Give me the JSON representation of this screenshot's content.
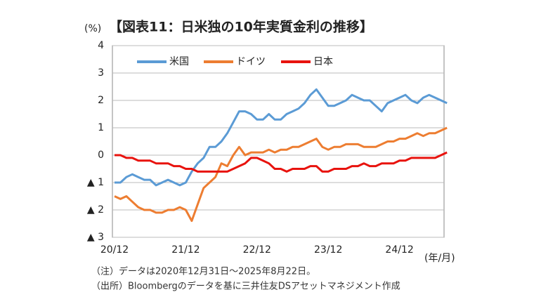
{
  "chart_data": {
    "type": "line",
    "title": "【図表11：日米独の10年実質金利の推移】",
    "y_unit": "(%)",
    "x_unit": "(年/月)",
    "notes": [
      "（注）データは2020年12月31日～2025年8月22日。",
      "（出所）Bloombergのデータを基に三井住友DSアセットマネジメント作成"
    ],
    "categories": [
      "20/12",
      null,
      null,
      null,
      null,
      null,
      null,
      null,
      null,
      null,
      null,
      null,
      "21/12",
      null,
      null,
      null,
      null,
      null,
      null,
      null,
      null,
      null,
      null,
      null,
      "22/12",
      null,
      null,
      null,
      null,
      null,
      null,
      null,
      null,
      null,
      null,
      null,
      "23/12",
      null,
      null,
      null,
      null,
      null,
      null,
      null,
      null,
      null,
      null,
      null,
      "24/12",
      null,
      null,
      null,
      null,
      null,
      null,
      null,
      null
    ],
    "series": [
      {
        "name": "米国",
        "color": "#5b9bd5",
        "values": [
          -1.0,
          -1.0,
          -0.8,
          -0.7,
          -0.8,
          -0.9,
          -0.9,
          -1.1,
          -1.0,
          -0.9,
          -1.0,
          -1.1,
          -1.0,
          -0.6,
          -0.3,
          -0.1,
          0.3,
          0.3,
          0.5,
          0.8,
          1.2,
          1.6,
          1.6,
          1.5,
          1.3,
          1.3,
          1.5,
          1.3,
          1.3,
          1.5,
          1.6,
          1.7,
          1.9,
          2.2,
          2.4,
          2.1,
          1.8,
          1.8,
          1.9,
          2.0,
          2.2,
          2.1,
          2.0,
          2.0,
          1.8,
          1.6,
          1.9,
          2.0,
          2.1,
          2.2,
          2.0,
          1.9,
          2.1,
          2.2,
          2.1,
          2.0,
          1.9
        ]
      },
      {
        "name": "ドイツ",
        "color": "#ed7d31",
        "values": [
          -1.5,
          -1.6,
          -1.5,
          -1.7,
          -1.9,
          -2.0,
          -2.0,
          -2.1,
          -2.1,
          -2.0,
          -2.0,
          -1.9,
          -2.0,
          -2.4,
          -1.8,
          -1.2,
          -1.0,
          -0.8,
          -0.3,
          -0.4,
          0.0,
          0.3,
          0.0,
          0.1,
          0.1,
          0.1,
          0.2,
          0.1,
          0.2,
          0.2,
          0.3,
          0.3,
          0.4,
          0.5,
          0.6,
          0.3,
          0.2,
          0.3,
          0.3,
          0.4,
          0.4,
          0.4,
          0.3,
          0.3,
          0.3,
          0.4,
          0.5,
          0.5,
          0.6,
          0.6,
          0.7,
          0.8,
          0.7,
          0.8,
          0.8,
          0.9,
          1.0
        ]
      },
      {
        "name": "日本",
        "color": "#e8130e",
        "values": [
          0.0,
          0.0,
          -0.1,
          -0.1,
          -0.2,
          -0.2,
          -0.2,
          -0.3,
          -0.3,
          -0.3,
          -0.4,
          -0.4,
          -0.5,
          -0.5,
          -0.6,
          -0.6,
          -0.6,
          -0.6,
          -0.6,
          -0.6,
          -0.5,
          -0.4,
          -0.3,
          -0.1,
          -0.1,
          -0.2,
          -0.3,
          -0.5,
          -0.5,
          -0.6,
          -0.5,
          -0.5,
          -0.5,
          -0.4,
          -0.4,
          -0.6,
          -0.6,
          -0.5,
          -0.5,
          -0.5,
          -0.4,
          -0.4,
          -0.3,
          -0.4,
          -0.4,
          -0.3,
          -0.3,
          -0.3,
          -0.2,
          -0.2,
          -0.1,
          -0.1,
          -0.1,
          -0.1,
          -0.1,
          0.0,
          0.1
        ]
      }
    ],
    "ylim": [
      -3,
      4
    ],
    "yticks": [
      {
        "value": -3,
        "label": "▲ 3"
      },
      {
        "value": -2,
        "label": "▲ 2"
      },
      {
        "value": -1,
        "label": "▲ 1"
      },
      0,
      1,
      2,
      3,
      4
    ],
    "grid": true,
    "legend": "top-left"
  }
}
